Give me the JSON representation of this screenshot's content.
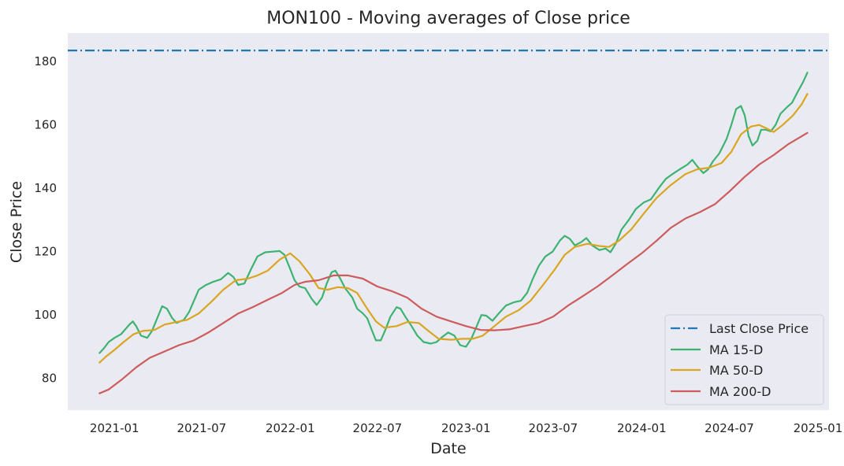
{
  "chart_data": {
    "type": "line",
    "title": "MON100 - Moving averages of Close price",
    "xlabel": "Date",
    "ylabel": "Close Price",
    "xlim": [
      "2020-09-26",
      "2025-01-24"
    ],
    "ylim": [
      70,
      189
    ],
    "grid": false,
    "legend_position": "lower-right",
    "x_ticks": [
      "2021-01",
      "2021-07",
      "2022-01",
      "2022-07",
      "2023-01",
      "2023-07",
      "2024-01",
      "2024-07",
      "2025-01"
    ],
    "y_ticks": [
      80,
      100,
      120,
      140,
      160,
      180
    ],
    "background_color": "#eaeaf2",
    "hline": {
      "name": "Last Close Price",
      "value": 183.5,
      "color": "#1f77b4",
      "style": "dashdot"
    },
    "series": [
      {
        "name": "MA 15-D",
        "color": "#3cb371",
        "points": [
          [
            "2020-12-01",
            88.0
          ],
          [
            "2020-12-10",
            89.5
          ],
          [
            "2020-12-20",
            91.5
          ],
          [
            "2021-01-01",
            92.8
          ],
          [
            "2021-01-15",
            94.0
          ],
          [
            "2021-02-01",
            97.0
          ],
          [
            "2021-02-08",
            98.0
          ],
          [
            "2021-02-15",
            96.5
          ],
          [
            "2021-02-25",
            93.5
          ],
          [
            "2021-03-10",
            92.8
          ],
          [
            "2021-03-20",
            95.0
          ],
          [
            "2021-04-01",
            99.5
          ],
          [
            "2021-04-10",
            102.8
          ],
          [
            "2021-04-20",
            102.0
          ],
          [
            "2021-05-01",
            99.0
          ],
          [
            "2021-05-10",
            97.5
          ],
          [
            "2021-05-25",
            98.5
          ],
          [
            "2021-06-05",
            101.0
          ],
          [
            "2021-06-15",
            104.5
          ],
          [
            "2021-06-25",
            108.0
          ],
          [
            "2021-07-10",
            109.5
          ],
          [
            "2021-07-25",
            110.5
          ],
          [
            "2021-08-10",
            111.3
          ],
          [
            "2021-08-25",
            113.3
          ],
          [
            "2021-09-05",
            112.0
          ],
          [
            "2021-09-15",
            109.5
          ],
          [
            "2021-09-28",
            110.0
          ],
          [
            "2021-10-10",
            114.0
          ],
          [
            "2021-10-25",
            118.5
          ],
          [
            "2021-11-10",
            119.8
          ],
          [
            "2021-11-25",
            120.0
          ],
          [
            "2021-12-10",
            120.2
          ],
          [
            "2021-12-20",
            119.0
          ],
          [
            "2022-01-01",
            114.5
          ],
          [
            "2022-01-10",
            111.0
          ],
          [
            "2022-01-20",
            109.0
          ],
          [
            "2022-02-01",
            108.5
          ],
          [
            "2022-02-15",
            105.0
          ],
          [
            "2022-02-25",
            103.2
          ],
          [
            "2022-03-08",
            105.5
          ],
          [
            "2022-03-18",
            110.0
          ],
          [
            "2022-03-28",
            113.5
          ],
          [
            "2022-04-05",
            114.0
          ],
          [
            "2022-04-15",
            111.5
          ],
          [
            "2022-04-25",
            108.5
          ],
          [
            "2022-05-10",
            105.5
          ],
          [
            "2022-05-20",
            102.0
          ],
          [
            "2022-06-01",
            100.5
          ],
          [
            "2022-06-10",
            99.0
          ],
          [
            "2022-06-20",
            95.0
          ],
          [
            "2022-06-28",
            92.0
          ],
          [
            "2022-07-08",
            92.0
          ],
          [
            "2022-07-18",
            95.5
          ],
          [
            "2022-07-28",
            99.5
          ],
          [
            "2022-08-10",
            102.5
          ],
          [
            "2022-08-18",
            102.0
          ],
          [
            "2022-08-28",
            99.5
          ],
          [
            "2022-09-10",
            96.5
          ],
          [
            "2022-09-22",
            93.5
          ],
          [
            "2022-10-05",
            91.5
          ],
          [
            "2022-10-20",
            91.0
          ],
          [
            "2022-11-01",
            91.5
          ],
          [
            "2022-11-12",
            93.0
          ],
          [
            "2022-11-25",
            94.5
          ],
          [
            "2022-12-08",
            93.5
          ],
          [
            "2022-12-20",
            90.5
          ],
          [
            "2023-01-01",
            90.0
          ],
          [
            "2023-01-12",
            92.5
          ],
          [
            "2023-01-22",
            96.0
          ],
          [
            "2023-02-02",
            100.0
          ],
          [
            "2023-02-12",
            99.8
          ],
          [
            "2023-02-25",
            98.2
          ],
          [
            "2023-03-10",
            100.5
          ],
          [
            "2023-03-25",
            103.0
          ],
          [
            "2023-04-10",
            104.0
          ],
          [
            "2023-04-25",
            104.5
          ],
          [
            "2023-05-08",
            107.0
          ],
          [
            "2023-05-20",
            111.5
          ],
          [
            "2023-06-01",
            115.5
          ],
          [
            "2023-06-15",
            118.5
          ],
          [
            "2023-06-30",
            120.0
          ],
          [
            "2023-07-15",
            123.5
          ],
          [
            "2023-07-25",
            125.0
          ],
          [
            "2023-08-05",
            124.0
          ],
          [
            "2023-08-15",
            122.0
          ],
          [
            "2023-08-28",
            123.0
          ],
          [
            "2023-09-08",
            124.3
          ],
          [
            "2023-09-20",
            122.0
          ],
          [
            "2023-10-05",
            120.5
          ],
          [
            "2023-10-18",
            121.0
          ],
          [
            "2023-10-28",
            119.8
          ],
          [
            "2023-11-08",
            122.5
          ],
          [
            "2023-11-20",
            127.0
          ],
          [
            "2023-12-05",
            130.0
          ],
          [
            "2023-12-20",
            133.5
          ],
          [
            "2024-01-05",
            135.5
          ],
          [
            "2024-01-20",
            136.5
          ],
          [
            "2024-02-05",
            140.0
          ],
          [
            "2024-02-20",
            143.0
          ],
          [
            "2024-03-05",
            144.5
          ],
          [
            "2024-03-20",
            146.0
          ],
          [
            "2024-04-05",
            147.5
          ],
          [
            "2024-04-15",
            149.0
          ],
          [
            "2024-04-25",
            147.0
          ],
          [
            "2024-05-08",
            144.8
          ],
          [
            "2024-05-18",
            146.0
          ],
          [
            "2024-05-28",
            148.5
          ],
          [
            "2024-06-10",
            151.0
          ],
          [
            "2024-06-25",
            155.5
          ],
          [
            "2024-07-05",
            160.0
          ],
          [
            "2024-07-15",
            165.0
          ],
          [
            "2024-07-25",
            166.0
          ],
          [
            "2024-08-02",
            163.0
          ],
          [
            "2024-08-10",
            156.5
          ],
          [
            "2024-08-18",
            153.5
          ],
          [
            "2024-08-28",
            155.0
          ],
          [
            "2024-09-05",
            158.5
          ],
          [
            "2024-09-15",
            158.5
          ],
          [
            "2024-09-25",
            158.0
          ],
          [
            "2024-10-05",
            160.0
          ],
          [
            "2024-10-15",
            163.5
          ],
          [
            "2024-10-28",
            165.5
          ],
          [
            "2024-11-08",
            167.0
          ],
          [
            "2024-11-20",
            170.5
          ],
          [
            "2024-12-01",
            173.5
          ],
          [
            "2024-12-10",
            176.5
          ]
        ]
      },
      {
        "name": "MA 50-D",
        "color": "#daa520",
        "points": [
          [
            "2020-12-01",
            85.0
          ],
          [
            "2020-12-15",
            87.0
          ],
          [
            "2021-01-01",
            89.0
          ],
          [
            "2021-01-20",
            91.5
          ],
          [
            "2021-02-10",
            94.0
          ],
          [
            "2021-03-01",
            95.0
          ],
          [
            "2021-03-25",
            95.3
          ],
          [
            "2021-04-15",
            97.0
          ],
          [
            "2021-05-10",
            97.8
          ],
          [
            "2021-06-01",
            98.5
          ],
          [
            "2021-06-25",
            100.5
          ],
          [
            "2021-07-20",
            104.0
          ],
          [
            "2021-08-15",
            108.0
          ],
          [
            "2021-09-10",
            111.0
          ],
          [
            "2021-10-05",
            111.5
          ],
          [
            "2021-10-25",
            112.5
          ],
          [
            "2021-11-15",
            114.0
          ],
          [
            "2021-12-10",
            117.5
          ],
          [
            "2022-01-01",
            119.5
          ],
          [
            "2022-01-20",
            117.0
          ],
          [
            "2022-02-10",
            113.0
          ],
          [
            "2022-03-01",
            108.5
          ],
          [
            "2022-03-20",
            108.0
          ],
          [
            "2022-04-10",
            108.8
          ],
          [
            "2022-05-01",
            108.5
          ],
          [
            "2022-05-20",
            107.0
          ],
          [
            "2022-06-10",
            102.0
          ],
          [
            "2022-06-28",
            98.0
          ],
          [
            "2022-07-15",
            96.0
          ],
          [
            "2022-08-10",
            96.5
          ],
          [
            "2022-09-01",
            97.8
          ],
          [
            "2022-09-25",
            97.5
          ],
          [
            "2022-10-15",
            95.0
          ],
          [
            "2022-11-05",
            92.5
          ],
          [
            "2022-12-01",
            92.2
          ],
          [
            "2022-12-25",
            92.5
          ],
          [
            "2023-01-15",
            92.5
          ],
          [
            "2023-02-05",
            93.5
          ],
          [
            "2023-03-01",
            96.5
          ],
          [
            "2023-03-25",
            99.5
          ],
          [
            "2023-04-20",
            101.5
          ],
          [
            "2023-05-15",
            104.5
          ],
          [
            "2023-06-10",
            109.5
          ],
          [
            "2023-07-05",
            114.5
          ],
          [
            "2023-07-25",
            119.0
          ],
          [
            "2023-08-15",
            121.5
          ],
          [
            "2023-09-10",
            122.5
          ],
          [
            "2023-10-05",
            121.8
          ],
          [
            "2023-10-25",
            121.5
          ],
          [
            "2023-11-15",
            123.5
          ],
          [
            "2023-12-10",
            127.0
          ],
          [
            "2024-01-05",
            132.0
          ],
          [
            "2024-02-01",
            137.0
          ],
          [
            "2024-03-01",
            141.0
          ],
          [
            "2024-04-01",
            144.5
          ],
          [
            "2024-04-25",
            146.0
          ],
          [
            "2024-05-20",
            146.5
          ],
          [
            "2024-06-15",
            148.0
          ],
          [
            "2024-07-05",
            151.5
          ],
          [
            "2024-07-25",
            157.0
          ],
          [
            "2024-08-15",
            159.5
          ],
          [
            "2024-09-01",
            160.0
          ],
          [
            "2024-09-15",
            159.0
          ],
          [
            "2024-10-01",
            157.8
          ],
          [
            "2024-10-20",
            160.0
          ],
          [
            "2024-11-10",
            163.0
          ],
          [
            "2024-11-28",
            166.5
          ],
          [
            "2024-12-10",
            169.8
          ]
        ]
      },
      {
        "name": "MA 200-D",
        "color": "#cd5c5c",
        "points": [
          [
            "2020-12-01",
            75.3
          ],
          [
            "2020-12-20",
            76.5
          ],
          [
            "2021-01-15",
            79.5
          ],
          [
            "2021-02-15",
            83.5
          ],
          [
            "2021-03-15",
            86.5
          ],
          [
            "2021-04-15",
            88.5
          ],
          [
            "2021-05-15",
            90.5
          ],
          [
            "2021-06-15",
            92.0
          ],
          [
            "2021-07-15",
            94.5
          ],
          [
            "2021-08-15",
            97.5
          ],
          [
            "2021-09-15",
            100.5
          ],
          [
            "2021-10-15",
            102.5
          ],
          [
            "2021-11-15",
            104.8
          ],
          [
            "2021-12-15",
            107.0
          ],
          [
            "2022-01-10",
            109.5
          ],
          [
            "2022-02-01",
            110.5
          ],
          [
            "2022-03-01",
            111.0
          ],
          [
            "2022-04-01",
            112.5
          ],
          [
            "2022-05-01",
            112.5
          ],
          [
            "2022-06-01",
            111.5
          ],
          [
            "2022-07-01",
            109.0
          ],
          [
            "2022-08-01",
            107.5
          ],
          [
            "2022-09-01",
            105.5
          ],
          [
            "2022-10-01",
            102.0
          ],
          [
            "2022-11-01",
            99.5
          ],
          [
            "2022-12-01",
            98.0
          ],
          [
            "2023-01-01",
            96.5
          ],
          [
            "2023-02-01",
            95.3
          ],
          [
            "2023-03-01",
            95.2
          ],
          [
            "2023-04-01",
            95.5
          ],
          [
            "2023-05-01",
            96.5
          ],
          [
            "2023-06-01",
            97.5
          ],
          [
            "2023-07-01",
            99.5
          ],
          [
            "2023-08-01",
            103.0
          ],
          [
            "2023-09-01",
            106.0
          ],
          [
            "2023-10-01",
            109.0
          ],
          [
            "2023-11-01",
            112.5
          ],
          [
            "2023-12-01",
            116.0
          ],
          [
            "2024-01-01",
            119.5
          ],
          [
            "2024-02-01",
            123.5
          ],
          [
            "2024-03-01",
            127.5
          ],
          [
            "2024-04-01",
            130.5
          ],
          [
            "2024-05-01",
            132.5
          ],
          [
            "2024-06-01",
            135.0
          ],
          [
            "2024-07-01",
            139.0
          ],
          [
            "2024-08-01",
            143.5
          ],
          [
            "2024-09-01",
            147.5
          ],
          [
            "2024-10-01",
            150.5
          ],
          [
            "2024-11-01",
            154.0
          ],
          [
            "2024-12-10",
            157.5
          ]
        ]
      }
    ]
  }
}
